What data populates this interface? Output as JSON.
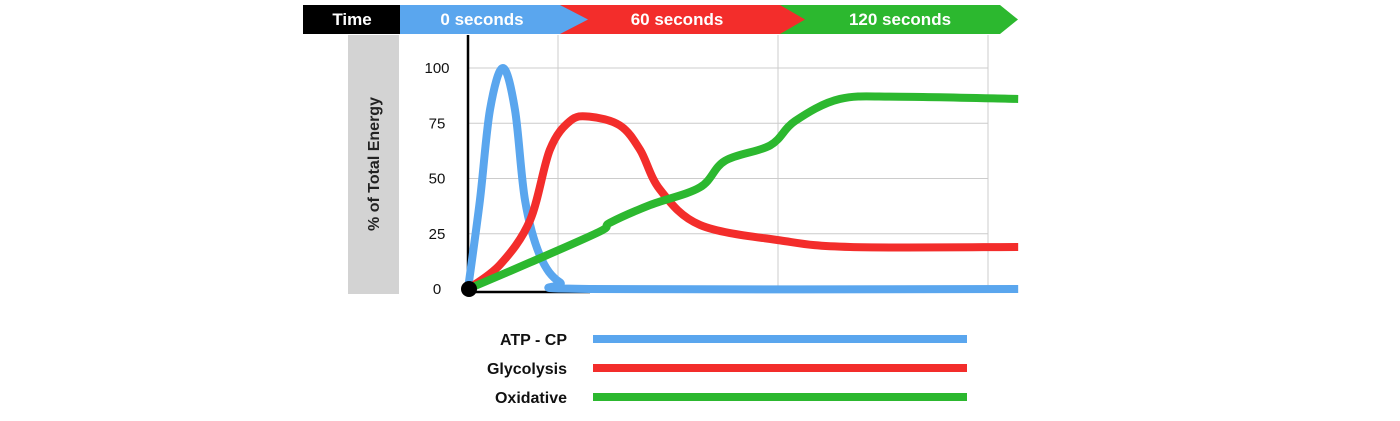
{
  "chart_data": {
    "type": "line",
    "header": {
      "label": "Time",
      "segments": [
        {
          "label": "0 seconds",
          "color": "#5aa6ee"
        },
        {
          "label": "60 seconds",
          "color": "#f32d2b"
        },
        {
          "label": "120 seconds",
          "color": "#2cb82f"
        }
      ]
    },
    "ylabel": "% of Total Energy",
    "xlabel": "",
    "ylim": [
      0,
      100
    ],
    "yticks": [
      "0",
      "25",
      "50",
      "75",
      "100"
    ],
    "xlim": [
      0,
      213
    ],
    "grid": true,
    "legend_placement": "bottom",
    "series": [
      {
        "name": "ATP - CP",
        "color": "#5aa6ee",
        "x": [
          0,
          4.6,
          8.5,
          13.5,
          18.2,
          22.1,
          27.9,
          35.6,
          47,
          213
        ],
        "y": [
          0,
          40,
          81,
          100,
          81,
          40,
          15,
          3,
          0,
          0
        ]
      },
      {
        "name": "Glycolysis",
        "color": "#f32d2b",
        "x": [
          0,
          12.4,
          24,
          31.7,
          39.5,
          47,
          58.8,
          66.6,
          74.3,
          89.8,
          120.8,
          148,
          213
        ],
        "y": [
          0,
          11,
          31,
          63,
          76,
          78,
          74,
          63,
          45,
          29,
          22,
          19,
          19
        ]
      },
      {
        "name": "Oxidative",
        "color": "#2cb82f",
        "x": [
          0,
          24,
          51,
          55,
          70.5,
          89.8,
          99.5,
          117,
          126.6,
          144,
          167,
          213
        ],
        "y": [
          0,
          12,
          26,
          30,
          38,
          46,
          58,
          65,
          76,
          86,
          87,
          86
        ]
      }
    ]
  }
}
